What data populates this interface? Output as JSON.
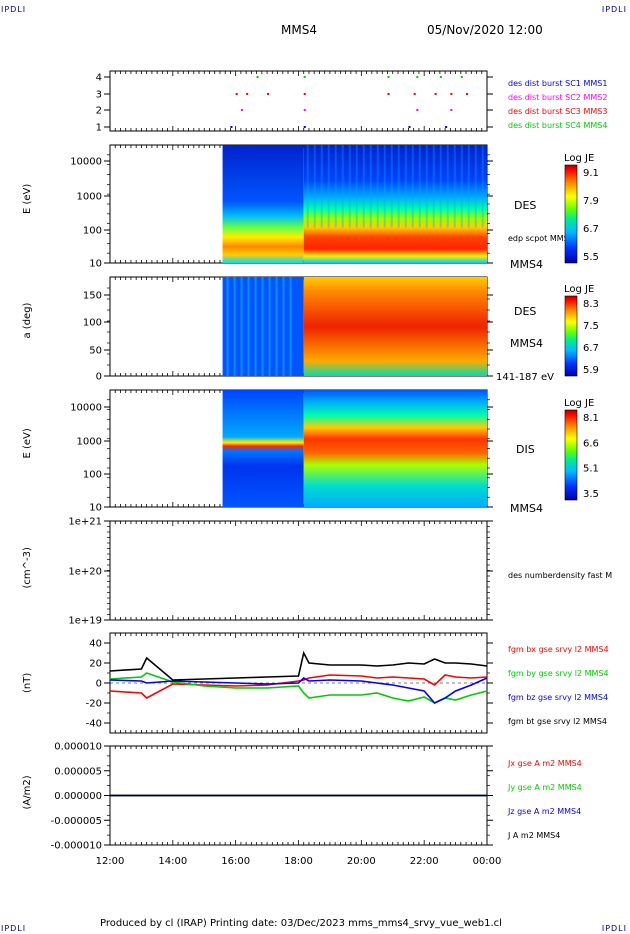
{
  "header": {
    "corner_label": "IPDLI",
    "spacecraft": "MMS4",
    "datetime": "05/Nov/2020 12:00"
  },
  "footer": {
    "text": "Produced by cl (IRAP)    Printing date: 03/Dec/2023    mms_mms4_srvy_vue_web1.cl"
  },
  "time_axis": {
    "ticks": [
      "12:00",
      "14:00",
      "16:00",
      "18:00",
      "20:00",
      "22:00",
      "00:00"
    ]
  },
  "panels": {
    "burst": {
      "yticks": [
        "4",
        "3",
        "2",
        "1"
      ],
      "legend": [
        {
          "text": "des dist burst SC1 MMS1",
          "color": "#0000ff"
        },
        {
          "text": "des dist burst SC2 MMS2",
          "color": "#ff00ff"
        },
        {
          "text": "des dist burst SC3 MMS3",
          "color": "#ff0000"
        },
        {
          "text": "des dist burst SC4 MMS4",
          "color": "#00cc00"
        }
      ]
    },
    "des_energy": {
      "ylabel": "E (eV)",
      "yticks": [
        "10000",
        "1000",
        "100",
        "10"
      ],
      "label": "DES",
      "overlay_label": "edp scpot MMS4",
      "sc_label": "MMS4",
      "cbar_title": "Log JE",
      "cbar_ticks": [
        "9.1",
        "7.9",
        "6.7",
        "5.5"
      ]
    },
    "des_pitch": {
      "ylabel": "a (deg)",
      "yticks": [
        "150",
        "100",
        "50",
        "0"
      ],
      "label": "DES",
      "sc_label": "MMS4",
      "energy_range": "141-187 eV",
      "cbar_title": "Log JE",
      "cbar_ticks": [
        "8.3",
        "7.5",
        "6.7",
        "5.9"
      ]
    },
    "dis_energy": {
      "ylabel": "E (eV)",
      "yticks": [
        "10000",
        "1000",
        "100",
        "10"
      ],
      "label": "DIS",
      "sc_label": "MMS4",
      "cbar_title": "Log JE",
      "cbar_ticks": [
        "8.1",
        "6.6",
        "5.1",
        "3.5"
      ]
    },
    "density": {
      "ylabel": "(cm^-3)",
      "yticks": [
        "1e+21",
        "1e+20",
        "1e+19"
      ],
      "legend": "des numberdensity fast M"
    },
    "bfield": {
      "ylabel": "(nT)",
      "yticks": [
        "40",
        "20",
        "0",
        "-20",
        "-40"
      ],
      "legend": [
        {
          "text": "fgm bx gse srvy l2 MMS4",
          "color": "#ff0000"
        },
        {
          "text": "fgm by gse srvy l2 MMS4",
          "color": "#00cc00"
        },
        {
          "text": "fgm bz gse srvy l2 MMS4",
          "color": "#0000ff"
        },
        {
          "text": "fgm bt gse srvy l2 MMS4",
          "color": "#000000"
        }
      ]
    },
    "current": {
      "ylabel": "(A/m2)",
      "yticks": [
        "0.000010",
        "0.000005",
        "0.000000",
        "-0.000005",
        "-0.000010"
      ],
      "legend": [
        {
          "text": "Jx gse A m2 MMS4",
          "color": "#ff0000"
        },
        {
          "text": "Jy gse A m2 MMS4",
          "color": "#00cc00"
        },
        {
          "text": "Jz gse A m2 MMS4",
          "color": "#0000ff"
        },
        {
          "text": "J A m2 MMS4",
          "color": "#000000"
        }
      ]
    }
  },
  "chart_data": {
    "type": "line",
    "title": "MMS4  05/Nov/2020 12:00",
    "x_range": [
      "12:00",
      "00:00"
    ],
    "x_ticks": [
      "12:00",
      "14:00",
      "16:00",
      "18:00",
      "20:00",
      "22:00",
      "00:00"
    ],
    "spectrogram_data_start": "15:35",
    "region_boundary": "18:10",
    "bfield": {
      "ylim": [
        -50,
        50
      ],
      "x": [
        "12:00",
        "13:00",
        "13:10",
        "14:00",
        "15:00",
        "16:00",
        "17:00",
        "18:00",
        "18:10",
        "18:20",
        "19:00",
        "20:00",
        "20:30",
        "21:00",
        "21:30",
        "22:00",
        "22:20",
        "22:40",
        "23:00",
        "23:30",
        "00:00"
      ],
      "series": [
        {
          "name": "fgm bx gse srvy l2 MMS4",
          "color": "#ff0000",
          "values": [
            -8,
            -10,
            -15,
            -1,
            -2,
            -3,
            -2,
            2,
            3,
            5,
            8,
            7,
            5,
            6,
            5,
            4,
            -2,
            8,
            6,
            5,
            6
          ]
        },
        {
          "name": "fgm by gse srvy l2 MMS4",
          "color": "#00cc00",
          "values": [
            4,
            6,
            10,
            1,
            -3,
            -5,
            -5,
            -3,
            -10,
            -15,
            -12,
            -12,
            -10,
            -15,
            -18,
            -14,
            -20,
            -15,
            -17,
            -12,
            -8
          ]
        },
        {
          "name": "fgm bz gse srvy l2 MMS4",
          "color": "#0000ff",
          "values": [
            3,
            2,
            0,
            2,
            1,
            0,
            -1,
            0,
            5,
            2,
            3,
            2,
            0,
            -2,
            -5,
            -8,
            -20,
            -15,
            -8,
            -2,
            5
          ]
        },
        {
          "name": "fgm bt gse srvy l2 MMS4",
          "color": "#000000",
          "values": [
            12,
            14,
            25,
            3,
            4,
            5,
            6,
            7,
            30,
            20,
            18,
            18,
            17,
            18,
            20,
            19,
            24,
            20,
            20,
            19,
            17
          ]
        }
      ]
    },
    "current": {
      "ylim": [
        -1e-05,
        1e-05
      ],
      "series": [
        {
          "name": "Jx gse A m2 MMS4",
          "color": "#ff0000",
          "values": [
            0.0
          ]
        },
        {
          "name": "Jy gse A m2 MMS4",
          "color": "#00cc00",
          "values": [
            0.0
          ]
        },
        {
          "name": "Jz gse A m2 MMS4",
          "color": "#0000ff",
          "values": [
            0.0
          ]
        },
        {
          "name": "J A m2 MMS4",
          "color": "#000000",
          "values": [
            0.0
          ]
        }
      ]
    },
    "density": {
      "ylim": [
        "1e+19",
        "1e+21"
      ],
      "log_scale": true
    },
    "burst_times": {
      "des dist burst SC1 MMS1": [
        "15:50",
        "18:10",
        "21:30",
        "22:40"
      ],
      "des dist burst SC2 MMS2": [
        "16:10",
        "18:10",
        "21:45",
        "22:50"
      ],
      "des dist burst SC3 MMS3": [
        "16:00",
        "16:20",
        "17:00",
        "18:10",
        "20:50",
        "21:40",
        "22:20",
        "22:50",
        "23:20"
      ],
      "des dist burst SC4 MMS4": [
        "16:40",
        "18:10",
        "20:50",
        "21:45",
        "22:30",
        "23:10"
      ]
    }
  }
}
